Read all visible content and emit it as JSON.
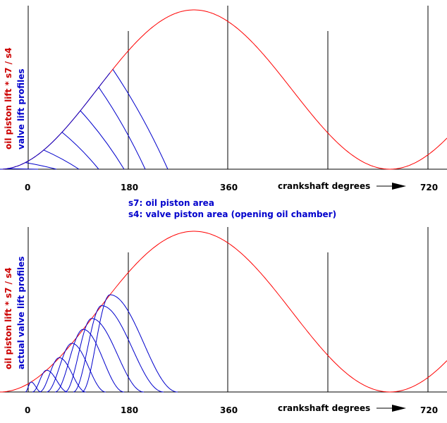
{
  "panels": [
    {
      "ylabel_red": "oil piston lift * s7 / s4",
      "ylabel_blue": "valve lift profiles",
      "ticks": [
        "0",
        "180",
        "360",
        "720"
      ],
      "x_axis_label": "crankshaft degrees",
      "profile_style": "hatched"
    },
    {
      "ylabel_red": "oil piston lift * s7 / s4",
      "ylabel_blue": "actual valve lift profiles",
      "ticks": [
        "0",
        "180",
        "360",
        "720"
      ],
      "x_axis_label": "crankshaft degrees",
      "profile_style": "bumps"
    }
  ],
  "legend": {
    "s7": "s7: oil piston area",
    "s4": "s4: valve piston area (opening oil chamber)"
  },
  "colors": {
    "red_curve": "#ff0000",
    "label_red": "#cc0000",
    "blue": "#0000cc",
    "axis": "#000000"
  }
}
